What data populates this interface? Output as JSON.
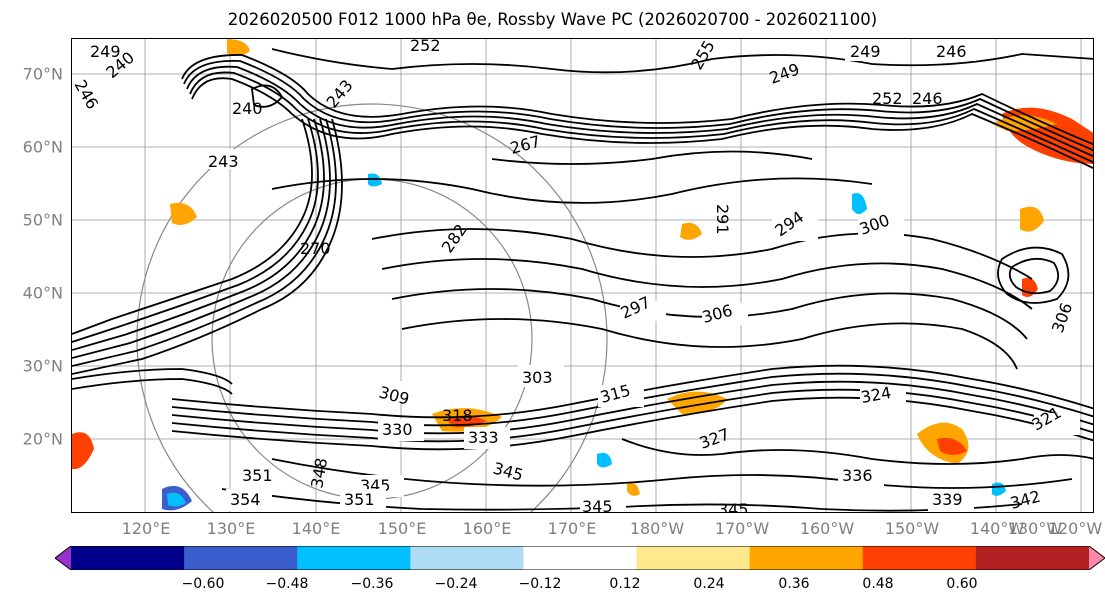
{
  "title": "2026020500 F012 1000 hPa θe, Rossby Wave PC (2026020700 - 2026021100)",
  "lat_labels": [
    "70°N",
    "60°N",
    "50°N",
    "40°N",
    "30°N",
    "20°N"
  ],
  "lon_labels": [
    "120°E",
    "130°E",
    "140°E",
    "150°E",
    "160°E",
    "170°E",
    "180°W",
    "170°W",
    "160°W",
    "150°W",
    "140°W",
    "130°W",
    "120°W"
  ],
  "contour_labels": [
    "249",
    "246",
    "240",
    "240",
    "243",
    "252",
    "255",
    "249",
    "249",
    "246",
    "252",
    "246",
    "243",
    "267",
    "291",
    "294",
    "300",
    "282",
    "270",
    "297",
    "306",
    "303",
    "309",
    "315",
    "318",
    "330",
    "333",
    "345",
    "348",
    "345",
    "351",
    "354",
    "351",
    "324",
    "327",
    "321",
    "336",
    "339",
    "345",
    "345",
    "342",
    "306"
  ],
  "colorbar": {
    "ticks": [
      "−0.60",
      "−0.48",
      "−0.36",
      "−0.24",
      "−0.12",
      "0.12",
      "0.24",
      "0.36",
      "0.48",
      "0.60"
    ],
    "colors": [
      "#9932cc",
      "#00008b",
      "#3a5fcd",
      "#00bfff",
      "#afdcf5",
      "#ffffff",
      "#ffe98c",
      "#ffa500",
      "#ff4000",
      "#b22222",
      "#ff88aa"
    ]
  }
}
